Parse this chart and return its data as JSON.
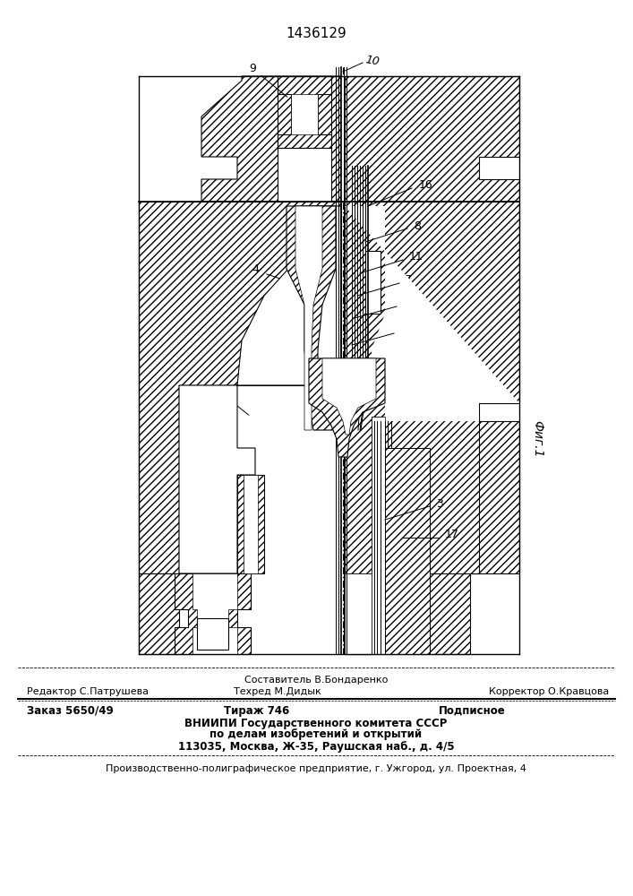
{
  "patent_number": "1436129",
  "fig_label": "Фиг.1",
  "background_color": "#ffffff",
  "line_color": "#000000",
  "footer_line1_left": "Редактор С.Патрушева",
  "footer_line1_center_top": "Составитель В.Бондаренко",
  "footer_line1_center": "Техред М.Дидык",
  "footer_line1_right": "Корректор О.Кравцова",
  "footer_line2_col1": "Заказ 5650/49",
  "footer_line2_col2": "Тираж 746",
  "footer_line2_col3": "Подписное",
  "footer_line3": "ВНИИПИ Государственного комитета СССР",
  "footer_line4": "по делам изобретений и открытий",
  "footer_line5": "113035, Москва, Ж-35, Раушская наб., д. 4/5",
  "footer_line6": "Производственно-полиграфическое предприятие, г. Ужгород, ул. Проектная, 4"
}
